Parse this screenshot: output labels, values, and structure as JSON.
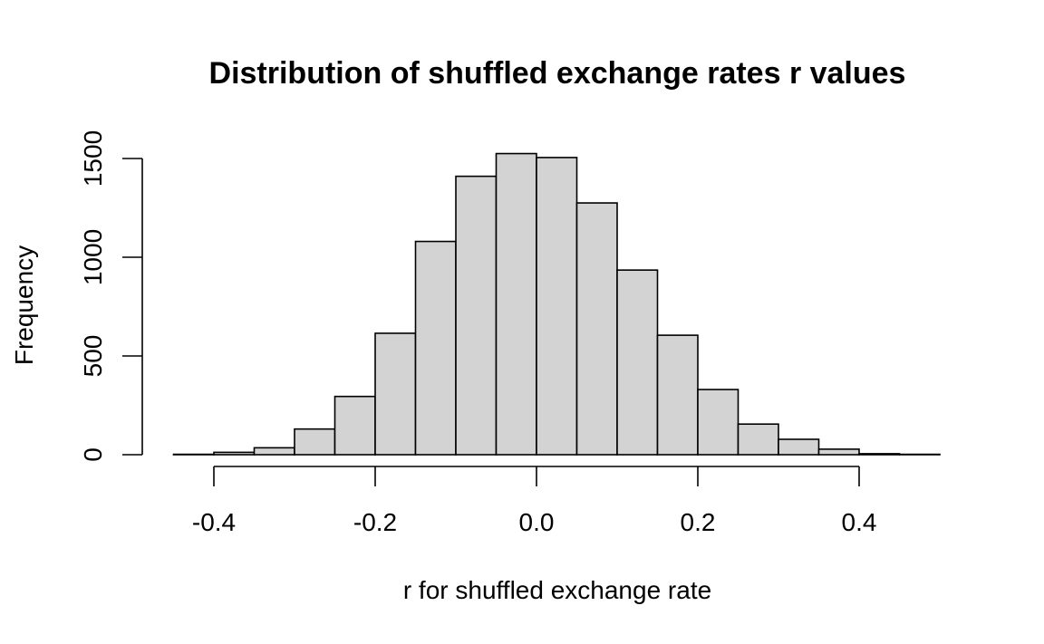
{
  "chart_data": {
    "type": "bar",
    "title": "Distribution of shuffled exchange rates r values",
    "xlabel": "r for shuffled exchange rate",
    "ylabel": "Frequency",
    "bin_edges": [
      -0.45,
      -0.4,
      -0.35,
      -0.3,
      -0.25,
      -0.2,
      -0.15,
      -0.1,
      -0.05,
      0.0,
      0.05,
      0.1,
      0.15,
      0.2,
      0.25,
      0.3,
      0.35,
      0.4,
      0.45,
      0.5
    ],
    "values": [
      2,
      12,
      35,
      130,
      295,
      615,
      1080,
      1410,
      1525,
      1505,
      1275,
      935,
      605,
      330,
      155,
      78,
      28,
      5,
      2
    ],
    "xlim": [
      -0.45,
      0.5
    ],
    "ylim": [
      0,
      1550
    ],
    "x_ticks": [
      -0.4,
      -0.2,
      0.0,
      0.2,
      0.4
    ],
    "x_tick_labels": [
      "-0.4",
      "-0.2",
      "0.0",
      "0.2",
      "0.4"
    ],
    "y_ticks": [
      0,
      500,
      1000,
      1500
    ],
    "y_tick_labels": [
      "0",
      "500",
      "1000",
      "1500"
    ],
    "bar_fill": "#d3d3d3",
    "bar_stroke": "#000000",
    "grid": false,
    "legend": "none"
  }
}
